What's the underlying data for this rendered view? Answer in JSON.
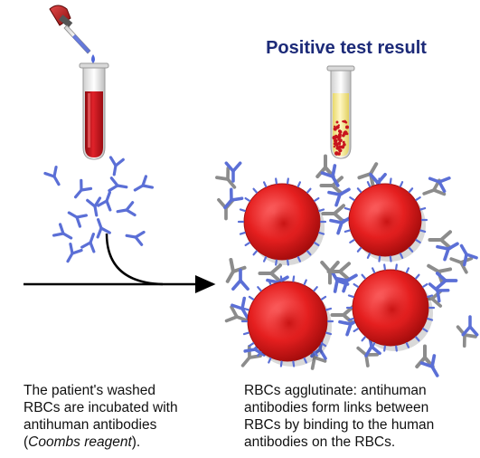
{
  "title": "Positive test result",
  "caption_left": {
    "line1": "The patient's washed",
    "line2": "RBCs are incubated with",
    "line3": "antihuman antibodies",
    "line4_open": "(",
    "line4_italic": "Coombs reagent",
    "line4_close": ")."
  },
  "caption_right": {
    "line1": "RBCs agglutinate: antihuman",
    "line2": "antibodies form links between",
    "line3": "RBCs by binding to the human",
    "line4": "antibodies on the RBCs."
  },
  "colors": {
    "title": "#1c2a78",
    "antibody_blue": "#5b6fd6",
    "antibody_gray": "#8c8c8c",
    "rbc_red": "#e51f1f",
    "blood": "#c8141e",
    "serum": "#f6eb9a"
  }
}
